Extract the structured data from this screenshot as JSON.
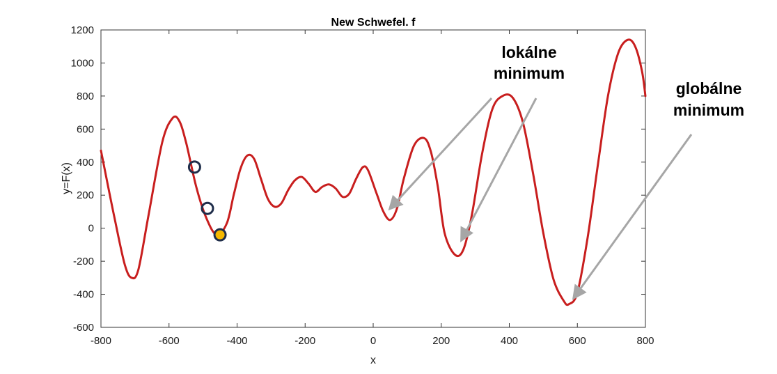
{
  "chart_data": {
    "type": "line",
    "title": "New Schwefel. f",
    "xlabel": "x",
    "ylabel": "y=F(x)",
    "xlim": [
      -800,
      800
    ],
    "ylim": [
      -600,
      1200
    ],
    "xticks": [
      -800,
      -600,
      -400,
      -200,
      0,
      200,
      400,
      600,
      800
    ],
    "yticks": [
      -600,
      -400,
      -200,
      0,
      200,
      400,
      600,
      800,
      1000,
      1200
    ],
    "grid": false,
    "line_color": "#c81e1e",
    "series": [
      {
        "x": [
          -800,
          -760,
          -730,
          -710,
          -690,
          -660,
          -620,
          -590,
          -570,
          -550,
          -520,
          -490,
          -460,
          -430,
          -410,
          -390,
          -370,
          -350,
          -330,
          -310,
          -290,
          -270,
          -250,
          -230,
          -210,
          -190,
          -170,
          -150,
          -130,
          -110,
          -90,
          -70,
          -50,
          -30,
          -15,
          10,
          30,
          50,
          70,
          90,
          120,
          150,
          170,
          190,
          210,
          240,
          265,
          290,
          320,
          350,
          380,
          410,
          440,
          470,
          500,
          530,
          560,
          575,
          600,
          630,
          660,
          690,
          720,
          748,
          770,
          790,
          800
        ],
        "y": [
          470,
          60,
          -220,
          -300,
          -250,
          80,
          520,
          665,
          650,
          520,
          250,
          60,
          -40,
          30,
          200,
          360,
          440,
          420,
          300,
          180,
          130,
          150,
          230,
          290,
          310,
          270,
          220,
          250,
          265,
          240,
          190,
          210,
          300,
          370,
          350,
          210,
          100,
          50,
          120,
          300,
          500,
          545,
          460,
          250,
          -30,
          -160,
          -130,
          80,
          450,
          720,
          800,
          790,
          640,
          330,
          -30,
          -310,
          -440,
          -460,
          -390,
          -60,
          380,
          800,
          1060,
          1140,
          1100,
          950,
          800
        ]
      }
    ],
    "markers": [
      {
        "x": -525,
        "y": 370,
        "fill": "none",
        "stroke": "#1f2d4a"
      },
      {
        "x": -487,
        "y": 120,
        "fill": "none",
        "stroke": "#1f2d4a"
      },
      {
        "x": -450,
        "y": -40,
        "fill": "#f5b800",
        "stroke": "#1f2d4a"
      }
    ],
    "annotations": [
      {
        "id": "local",
        "lines": [
          "lokálne",
          "minimum"
        ],
        "targets": [
          [
            50,
            120
          ],
          [
            260,
            -70
          ]
        ]
      },
      {
        "id": "global",
        "lines": [
          "globálne",
          "minimum"
        ],
        "targets": [
          [
            590,
            -420
          ]
        ]
      }
    ],
    "arrow_color": "#a6a6a6"
  }
}
